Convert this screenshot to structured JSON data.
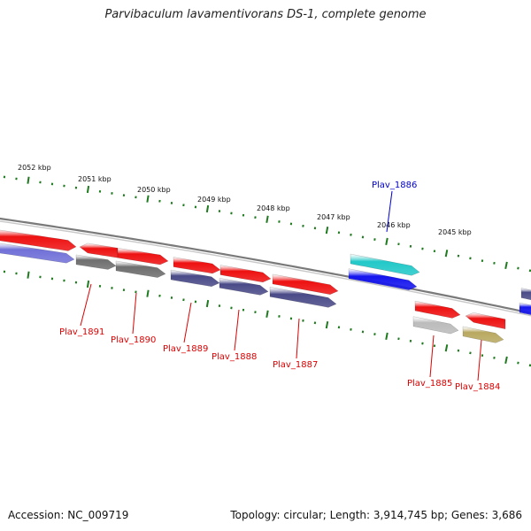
{
  "title": "Parvibaculum lavamentivorans DS-1, complete genome",
  "accession": "Accession: NC_009719",
  "topology": "Topology: circular; Length: 3,914,745 bp; Genes: 3,686",
  "colors": {
    "backbone": "#888888",
    "ticks": "#1e7a1e",
    "gene_red": "#ee1111",
    "gene_purple": "#7070d8",
    "gene_gray": "#6e6e6e",
    "gene_navy": "#4a4a88",
    "gene_cyan": "#22c8c8",
    "gene_blue": "#1515ee",
    "gene_lightgray": "#bbbbbb",
    "gene_olive": "#b8a860",
    "label_red": "#dd0000",
    "label_blue": "#0000cc"
  },
  "kbp_labels": [
    "2052 kbp",
    "2051 kbp",
    "2050 kbp",
    "2049 kbp",
    "2048 kbp",
    "2047 kbp",
    "2046 kbp",
    "2045 kbp"
  ],
  "gene_labels": [
    {
      "text": "Plav_1891",
      "color": "red"
    },
    {
      "text": "Plav_1890",
      "color": "red"
    },
    {
      "text": "Plav_1889",
      "color": "red"
    },
    {
      "text": "Plav_1888",
      "color": "red"
    },
    {
      "text": "Plav_1887",
      "color": "red"
    },
    {
      "text": "Plav_1886",
      "color": "blue"
    },
    {
      "text": "Plav_1885",
      "color": "red"
    },
    {
      "text": "Plav_1884",
      "color": "red"
    }
  ]
}
